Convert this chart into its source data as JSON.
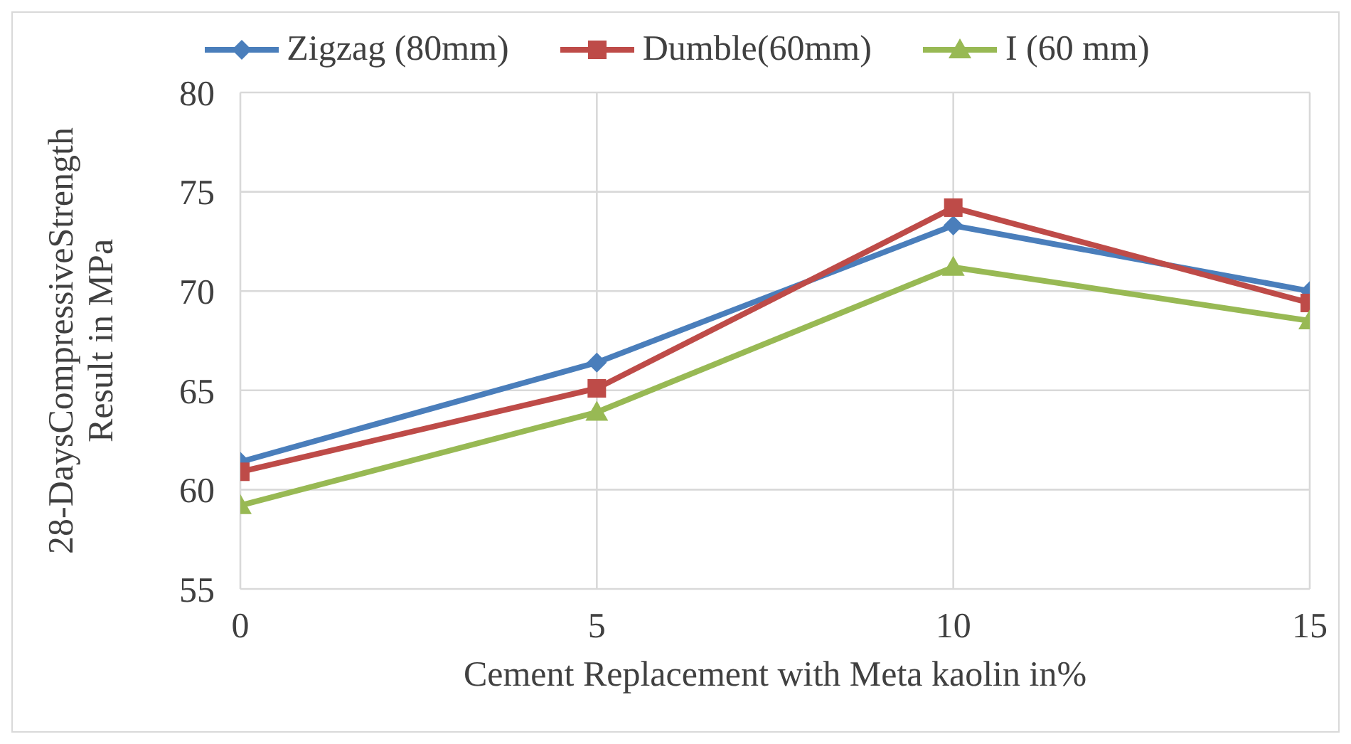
{
  "chart_data": {
    "type": "line",
    "xlabel": "Cement Replacement with Meta kaolin in%",
    "ylabel": "28-DaysCompressiveStrength Result in MPa",
    "x": [
      0,
      5,
      10,
      15
    ],
    "xlim": [
      0,
      15
    ],
    "xticks": [
      0,
      5,
      10,
      15
    ],
    "ylim": [
      55,
      80
    ],
    "yticks": [
      55,
      60,
      65,
      70,
      75,
      80
    ],
    "grid": true,
    "legend": "top",
    "line_style": "solid",
    "series": [
      {
        "name": "Zigzag (80mm)",
        "color": "#4a7ebb",
        "marker": "diamond",
        "values": [
          61.4,
          66.4,
          73.3,
          70.0
        ]
      },
      {
        "name": "Dumble(60mm)",
        "color": "#be4b48",
        "marker": "square",
        "values": [
          60.9,
          65.1,
          74.2,
          69.4
        ]
      },
      {
        "name": "I (60 mm)",
        "color": "#98b954",
        "marker": "triangle",
        "values": [
          59.2,
          63.9,
          71.2,
          68.5
        ]
      }
    ]
  }
}
